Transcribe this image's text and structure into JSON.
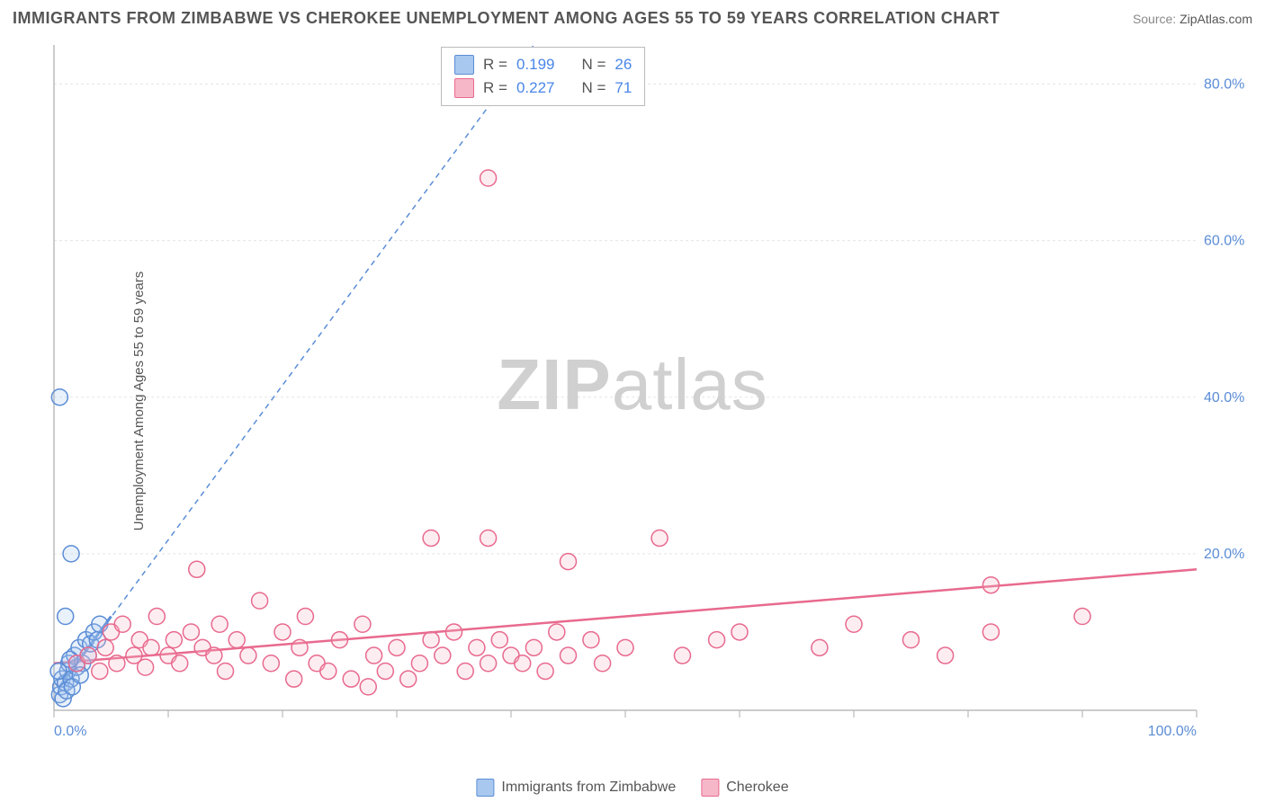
{
  "header": {
    "title": "IMMIGRANTS FROM ZIMBABWE VS CHEROKEE UNEMPLOYMENT AMONG AGES 55 TO 59 YEARS CORRELATION CHART",
    "source_label": "Source:",
    "source_value": "ZipAtlas.com"
  },
  "watermark": {
    "part1": "ZIP",
    "part2": "atlas"
  },
  "chart": {
    "type": "scatter",
    "y_label": "Unemployment Among Ages 55 to 59 years",
    "x_range": [
      0,
      100
    ],
    "y_range": [
      0,
      85
    ],
    "x_ticks": [
      0,
      10,
      20,
      30,
      40,
      50,
      60,
      70,
      80,
      90,
      100
    ],
    "x_tick_labels": {
      "0": "0.0%",
      "100": "100.0%"
    },
    "y_ticks": [
      20,
      40,
      60,
      80
    ],
    "y_tick_labels": {
      "20": "20.0%",
      "40": "40.0%",
      "60": "60.0%",
      "80": "80.0%"
    },
    "grid_color": "#e5e5e5",
    "axis_color": "#bbbbbb",
    "tick_label_color": "#5b8dd6",
    "background_color": "#ffffff",
    "marker_radius": 9,
    "marker_stroke_width": 1.5,
    "marker_fill_opacity": 0.25,
    "series": [
      {
        "name": "Immigrants from Zimbabwe",
        "stroke": "#5b8dd6",
        "fill": "#a9c8ef",
        "line_dash": "6,5",
        "line_solid_segment": {
          "x1": 0.5,
          "y1": 3,
          "x2": 5,
          "y2": 12
        },
        "line_dash_segment": {
          "x1": 0.5,
          "y1": 3,
          "x2": 42,
          "y2": 85
        },
        "r_value": "0.199",
        "n_value": "26",
        "points": [
          {
            "x": 0.5,
            "y": 2
          },
          {
            "x": 0.6,
            "y": 3
          },
          {
            "x": 0.7,
            "y": 4
          },
          {
            "x": 1.0,
            "y": 3.5
          },
          {
            "x": 1.2,
            "y": 5
          },
          {
            "x": 1.3,
            "y": 6
          },
          {
            "x": 1.5,
            "y": 4
          },
          {
            "x": 1.8,
            "y": 7
          },
          {
            "x": 2.0,
            "y": 5.5
          },
          {
            "x": 2.2,
            "y": 8
          },
          {
            "x": 2.5,
            "y": 6
          },
          {
            "x": 2.8,
            "y": 9
          },
          {
            "x": 3.0,
            "y": 7
          },
          {
            "x": 3.2,
            "y": 8.5
          },
          {
            "x": 3.5,
            "y": 10
          },
          {
            "x": 3.8,
            "y": 9
          },
          {
            "x": 4.0,
            "y": 11
          },
          {
            "x": 0.8,
            "y": 1.5
          },
          {
            "x": 1.1,
            "y": 2.5
          },
          {
            "x": 1.6,
            "y": 3
          },
          {
            "x": 2.3,
            "y": 4.5
          },
          {
            "x": 0.4,
            "y": 5
          },
          {
            "x": 1.4,
            "y": 6.5
          },
          {
            "x": 1.0,
            "y": 12
          },
          {
            "x": 1.5,
            "y": 20
          },
          {
            "x": 0.5,
            "y": 40
          }
        ]
      },
      {
        "name": "Cherokee",
        "stroke": "#e86a8e",
        "fill": "#f6b8c9",
        "line_dash": "none",
        "line_segment": {
          "x1": 0,
          "y1": 6,
          "x2": 100,
          "y2": 18
        },
        "r_value": "0.227",
        "n_value": "71",
        "points": [
          {
            "x": 2,
            "y": 6
          },
          {
            "x": 3,
            "y": 7
          },
          {
            "x": 4,
            "y": 5
          },
          {
            "x": 4.5,
            "y": 8
          },
          {
            "x": 5,
            "y": 10
          },
          {
            "x": 5.5,
            "y": 6
          },
          {
            "x": 6,
            "y": 11
          },
          {
            "x": 7,
            "y": 7
          },
          {
            "x": 7.5,
            "y": 9
          },
          {
            "x": 8,
            "y": 5.5
          },
          {
            "x": 8.5,
            "y": 8
          },
          {
            "x": 9,
            "y": 12
          },
          {
            "x": 10,
            "y": 7
          },
          {
            "x": 10.5,
            "y": 9
          },
          {
            "x": 11,
            "y": 6
          },
          {
            "x": 12,
            "y": 10
          },
          {
            "x": 12.5,
            "y": 18
          },
          {
            "x": 13,
            "y": 8
          },
          {
            "x": 14,
            "y": 7
          },
          {
            "x": 14.5,
            "y": 11
          },
          {
            "x": 15,
            "y": 5
          },
          {
            "x": 16,
            "y": 9
          },
          {
            "x": 17,
            "y": 7
          },
          {
            "x": 18,
            "y": 14
          },
          {
            "x": 19,
            "y": 6
          },
          {
            "x": 20,
            "y": 10
          },
          {
            "x": 21,
            "y": 4
          },
          {
            "x": 21.5,
            "y": 8
          },
          {
            "x": 22,
            "y": 12
          },
          {
            "x": 23,
            "y": 6
          },
          {
            "x": 24,
            "y": 5
          },
          {
            "x": 25,
            "y": 9
          },
          {
            "x": 26,
            "y": 4
          },
          {
            "x": 27,
            "y": 11
          },
          {
            "x": 27.5,
            "y": 3
          },
          {
            "x": 28,
            "y": 7
          },
          {
            "x": 29,
            "y": 5
          },
          {
            "x": 30,
            "y": 8
          },
          {
            "x": 31,
            "y": 4
          },
          {
            "x": 32,
            "y": 6
          },
          {
            "x": 33,
            "y": 9
          },
          {
            "x": 33,
            "y": 22
          },
          {
            "x": 34,
            "y": 7
          },
          {
            "x": 35,
            "y": 10
          },
          {
            "x": 36,
            "y": 5
          },
          {
            "x": 37,
            "y": 8
          },
          {
            "x": 38,
            "y": 6
          },
          {
            "x": 38,
            "y": 22
          },
          {
            "x": 39,
            "y": 9
          },
          {
            "x": 40,
            "y": 7
          },
          {
            "x": 41,
            "y": 6
          },
          {
            "x": 42,
            "y": 8
          },
          {
            "x": 43,
            "y": 5
          },
          {
            "x": 44,
            "y": 10
          },
          {
            "x": 45,
            "y": 7
          },
          {
            "x": 47,
            "y": 9
          },
          {
            "x": 48,
            "y": 6
          },
          {
            "x": 50,
            "y": 8
          },
          {
            "x": 53,
            "y": 22
          },
          {
            "x": 55,
            "y": 7
          },
          {
            "x": 58,
            "y": 9
          },
          {
            "x": 60,
            "y": 10
          },
          {
            "x": 38,
            "y": 68
          },
          {
            "x": 45,
            "y": 19
          },
          {
            "x": 82,
            "y": 16
          },
          {
            "x": 82,
            "y": 10
          },
          {
            "x": 90,
            "y": 12
          },
          {
            "x": 67,
            "y": 8
          },
          {
            "x": 70,
            "y": 11
          },
          {
            "x": 75,
            "y": 9
          },
          {
            "x": 78,
            "y": 7
          }
        ]
      }
    ]
  },
  "stats": {
    "r_label": "R =",
    "n_label": "N ="
  },
  "bottom_legend": {
    "items": [
      {
        "label": "Immigrants from Zimbabwe",
        "stroke": "#5b8dd6",
        "fill": "#a9c8ef"
      },
      {
        "label": "Cherokee",
        "stroke": "#e86a8e",
        "fill": "#f6b8c9"
      }
    ]
  }
}
